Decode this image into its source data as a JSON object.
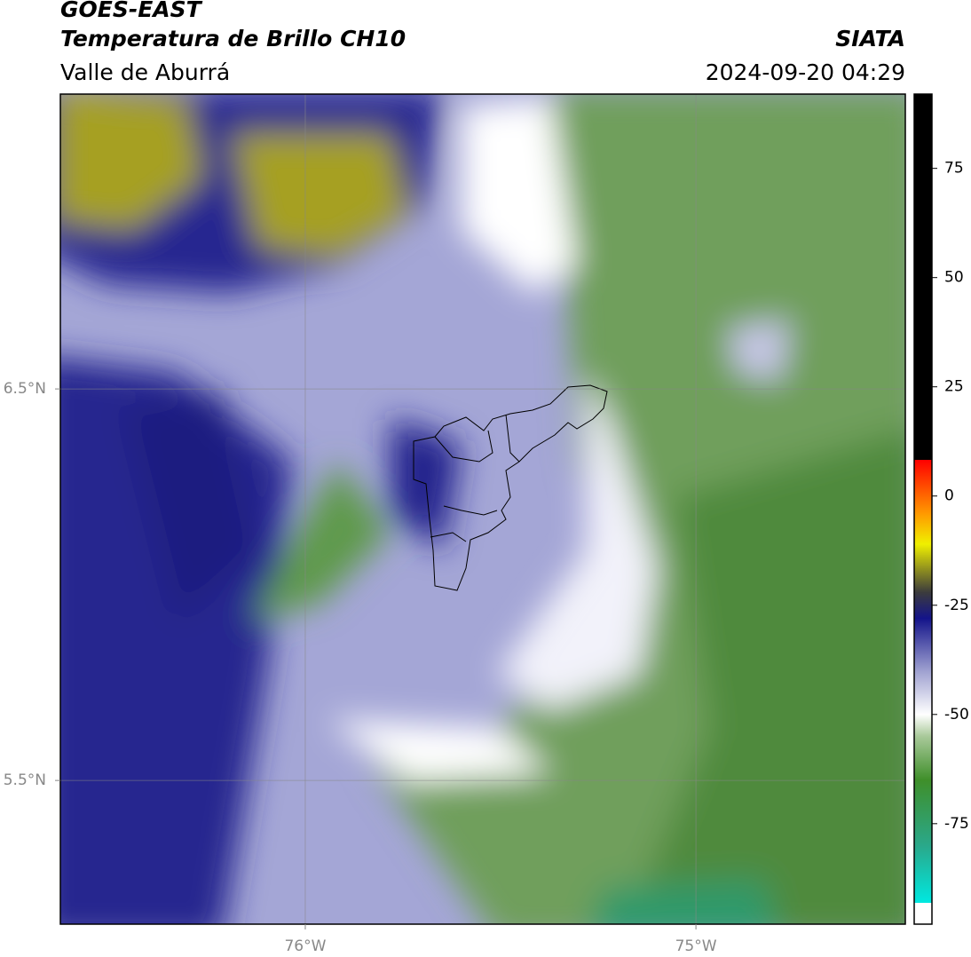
{
  "header": {
    "satellite": "GOES-EAST",
    "product": "Temperatura de Brillo CH10",
    "region": "Valle de Aburrá",
    "agency": "SIATA",
    "datetime": "2024-09-20 04:29"
  },
  "map": {
    "xlim": [
      -76.627,
      -74.464
    ],
    "ylim": [
      5.133,
      7.253
    ],
    "xticks": [
      {
        "value": -76,
        "label": "76°W"
      },
      {
        "value": -75,
        "label": "75°W"
      }
    ],
    "yticks": [
      {
        "value": 6.5,
        "label": "6.5°N"
      },
      {
        "value": 5.5,
        "label": "5.5°N"
      }
    ],
    "grid": true
  },
  "colorbar": {
    "lim": [
      -98,
      92
    ],
    "ticks": [
      75,
      50,
      25,
      0,
      -25,
      -50,
      -75
    ],
    "stops": [
      {
        "value": -98,
        "color": "#ffffff"
      },
      {
        "value": -93.1,
        "color": "#ffffff"
      },
      {
        "value": -93.1,
        "color": "#00e8e0"
      },
      {
        "value": -80,
        "color": "#2aa88a"
      },
      {
        "value": -65,
        "color": "#3f8f2a"
      },
      {
        "value": -55,
        "color": "#a9c99a"
      },
      {
        "value": -50,
        "color": "#ffffff"
      },
      {
        "value": -40,
        "color": "#9ea0d0"
      },
      {
        "value": -28,
        "color": "#14148a"
      },
      {
        "value": -22,
        "color": "#3c3c3c"
      },
      {
        "value": -17,
        "color": "#8c8c20"
      },
      {
        "value": -11,
        "color": "#f0f000"
      },
      {
        "value": -4,
        "color": "#ff9900"
      },
      {
        "value": 8.3,
        "color": "#ff0000"
      },
      {
        "value": 8.3,
        "color": "#000000"
      },
      {
        "value": 92,
        "color": "#000000"
      }
    ]
  }
}
